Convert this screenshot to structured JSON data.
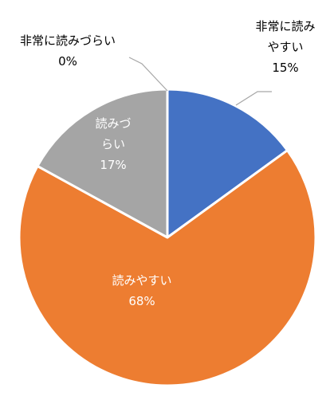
{
  "chart_data": {
    "type": "pie",
    "slices": [
      {
        "label": "非常に読みやすい",
        "label_lines": [
          "非常に読み",
          "やすい"
        ],
        "value": 15,
        "value_text": "15%",
        "color": "#4472C4"
      },
      {
        "label": "読みやすい",
        "label_lines": [
          "読みやすい"
        ],
        "value": 68,
        "value_text": "68%",
        "color": "#ED7D31"
      },
      {
        "label": "読みづらい",
        "label_lines": [
          "読みづ",
          "らい"
        ],
        "value": 17,
        "value_text": "17%",
        "color": "#A5A5A5"
      },
      {
        "label": "非常に読みづらい",
        "label_lines": [
          "非常に読みづらい"
        ],
        "value": 0,
        "value_text": "0%",
        "color": "#FFC000"
      }
    ],
    "slice_border_color": "#FFFFFF",
    "inside_label_color": "#FFFFFF",
    "outside_label_color": "#000000",
    "leader_line_color": "#A6A6A6",
    "legend": "none"
  }
}
